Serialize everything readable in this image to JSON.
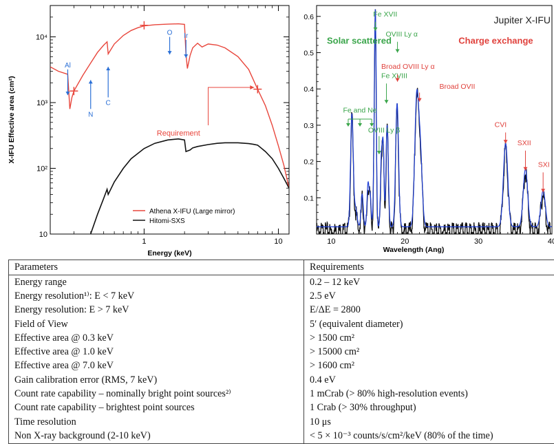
{
  "left_chart": {
    "type": "line",
    "ylabel": "X-IFU Effective area (cm²)",
    "xlabel": "Energy (keV)",
    "x_scale": "log",
    "y_scale": "log",
    "xlim": [
      0.2,
      12
    ],
    "ylim": [
      10,
      30000
    ],
    "x_ticks": [
      {
        "v": 1,
        "label": "1"
      },
      {
        "v": 10,
        "label": "10"
      }
    ],
    "y_ticks": [
      {
        "v": 10,
        "label": "10"
      },
      {
        "v": 100,
        "label": "10²"
      },
      {
        "v": 1000,
        "label": "10³"
      },
      {
        "v": 10000,
        "label": "10⁴"
      }
    ],
    "colors": {
      "athena": "#e8463c",
      "hitomi": "#111111",
      "arrow": "#2a6fd6",
      "req": "#e8463c"
    },
    "series": [
      {
        "name": "Athena X-IFU (Large mirror)",
        "color": "#e8463c",
        "x": [
          0.2,
          0.23,
          0.27,
          0.28,
          0.29,
          0.3,
          0.35,
          0.4,
          0.45,
          0.5,
          0.53,
          0.54,
          0.6,
          0.7,
          0.8,
          0.9,
          1.0,
          1.2,
          1.5,
          1.8,
          2.0,
          2.05,
          2.1,
          2.2,
          2.3,
          2.5,
          2.7,
          3.0,
          3.5,
          4,
          5,
          6,
          7,
          8,
          9,
          10,
          11,
          12
        ],
        "y": [
          3500,
          3000,
          2700,
          800,
          1200,
          1500,
          2600,
          4000,
          5800,
          7500,
          8400,
          5500,
          7800,
          10500,
          12500,
          13800,
          14700,
          15300,
          15600,
          15800,
          15500,
          5500,
          3300,
          5200,
          6800,
          8000,
          7000,
          7800,
          7500,
          6800,
          5000,
          3200,
          1600,
          900,
          450,
          220,
          110,
          50
        ]
      },
      {
        "name": "Hitomi-SXS",
        "color": "#111111",
        "x": [
          0.4,
          0.45,
          0.5,
          0.53,
          0.54,
          0.6,
          0.7,
          0.8,
          1.0,
          1.2,
          1.5,
          1.8,
          2.0,
          2.05,
          2.2,
          2.3,
          2.5,
          3,
          3.5,
          4,
          5,
          6,
          6.5,
          7,
          7.2,
          8,
          9,
          10,
          11,
          12
        ],
        "y": [
          10,
          20,
          35,
          48,
          40,
          62,
          100,
          140,
          200,
          240,
          270,
          280,
          270,
          180,
          190,
          205,
          215,
          230,
          240,
          245,
          245,
          238,
          232,
          225,
          215,
          180,
          140,
          100,
          70,
          50
        ]
      }
    ],
    "requirements": {
      "x": [
        0.3,
        1.0,
        7.0
      ],
      "y": [
        1500,
        15000,
        1600
      ]
    },
    "edges": [
      {
        "label": "Al",
        "x": 0.27,
        "y_from": 3200,
        "y_to": 1300
      },
      {
        "label": "N",
        "x": 0.4,
        "y_from": 800,
        "y_to": 2200
      },
      {
        "label": "C",
        "x": 0.54,
        "y_from": 1200,
        "y_to": 3500
      },
      {
        "label": "O",
        "x": 1.55,
        "y_from": 10000,
        "y_to": 5400
      },
      {
        "label": "Ir",
        "x": 2.05,
        "y_from": 9000,
        "y_to": 4800
      }
    ],
    "annotation": "Requirement",
    "legend": [
      "Athena X-IFU (Large mirror)",
      "Hitomi-SXS"
    ]
  },
  "right_chart": {
    "type": "line",
    "title": "Jupiter X-IFU",
    "xlabel": "Wavelength (Ang)",
    "xlim": [
      8,
      40
    ],
    "ylim": [
      0,
      0.63
    ],
    "x_ticks": [
      {
        "v": 10,
        "label": "10"
      },
      {
        "v": 20,
        "label": "20"
      },
      {
        "v": 30,
        "label": "30"
      },
      {
        "v": 40,
        "label": "40"
      }
    ],
    "y_ticks": [
      {
        "v": 0.1,
        "label": "0.1"
      },
      {
        "v": 0.2,
        "label": "0.2"
      },
      {
        "v": 0.3,
        "label": "0.3"
      },
      {
        "v": 0.4,
        "label": "0.4"
      },
      {
        "v": 0.5,
        "label": "0.5"
      },
      {
        "v": 0.6,
        "label": "0.6"
      }
    ],
    "peaks": [
      {
        "x": 12.8,
        "h": 0.31,
        "w": 0.18
      },
      {
        "x": 13.3,
        "h": 0.05,
        "w": 0.2
      },
      {
        "x": 14.2,
        "h": 0.09,
        "w": 0.15
      },
      {
        "x": 15.0,
        "h": 0.12,
        "w": 0.14
      },
      {
        "x": 15.3,
        "h": 0.08,
        "w": 0.12
      },
      {
        "x": 15.8,
        "h": 0.11,
        "w": 0.12
      },
      {
        "x": 16.0,
        "h": 0.57,
        "w": 0.12
      },
      {
        "x": 16.8,
        "h": 0.18,
        "w": 0.12
      },
      {
        "x": 17.05,
        "h": 0.22,
        "w": 0.12
      },
      {
        "x": 17.6,
        "h": 0.28,
        "w": 0.16
      },
      {
        "x": 18.95,
        "h": 0.34,
        "w": 0.2
      },
      {
        "x": 21.6,
        "h": 0.34,
        "w": 0.26
      },
      {
        "x": 22.1,
        "h": 0.2,
        "w": 0.26
      },
      {
        "x": 33.7,
        "h": 0.23,
        "w": 0.3
      },
      {
        "x": 36.4,
        "h": 0.16,
        "w": 0.3
      },
      {
        "x": 38.8,
        "h": 0.1,
        "w": 0.3
      }
    ],
    "baseline": 0.02,
    "colors": {
      "green": "#3aa54a",
      "red": "#e0413c",
      "data": "#111111",
      "model": "#1f3fd6",
      "title": "#222222"
    },
    "labels_green": [
      {
        "text": "Solar scattered",
        "lx": 9.4,
        "ly": 0.525,
        "big": true
      },
      {
        "text": "Fe XVII",
        "lx": 15.7,
        "ly": 0.6,
        "ax": 16.0,
        "ay_from": 0.585,
        "ay_to": 0.56
      },
      {
        "text": "OVIII Ly α",
        "lx": 17.4,
        "ly": 0.545,
        "ax": 19.0,
        "ay_from": 0.53,
        "ay_to": 0.5
      },
      {
        "text": "Fe XVIII",
        "lx": 16.8,
        "ly": 0.43,
        "ax": 17.5,
        "ay_from": 0.415,
        "ay_to": 0.36
      },
      {
        "text": "Fe and Ne",
        "lx": 11.6,
        "ly": 0.335,
        "ax": null
      },
      {
        "text": "OVIII Ly β",
        "lx": 15.0,
        "ly": 0.28,
        "ax": null
      }
    ],
    "labels_red": [
      {
        "text": "Charge exchange",
        "lx": 27.3,
        "ly": 0.525,
        "big": true
      },
      {
        "text": "Broad OVIII Ly α",
        "lx": 16.8,
        "ly": 0.455,
        "ax": 19.0,
        "ay_from": 0.44,
        "ay_to": 0.42
      },
      {
        "text": "Broad OVII",
        "lx": 24.7,
        "ly": 0.4,
        "ax": 22.0,
        "ay_from": 0.39,
        "ay_to": 0.365
      },
      {
        "text": "CVI",
        "lx": 32.2,
        "ly": 0.295,
        "ax": 33.7,
        "ay_from": 0.28,
        "ay_to": 0.25
      },
      {
        "text": "SXII",
        "lx": 35.3,
        "ly": 0.245,
        "ax": 36.4,
        "ay_from": 0.23,
        "ay_to": 0.175
      },
      {
        "text": "SXI",
        "lx": 38.1,
        "ly": 0.185,
        "ax": 38.8,
        "ay_from": 0.17,
        "ay_to": 0.115
      }
    ]
  },
  "table": {
    "header": [
      "Parameters",
      "Requirements"
    ],
    "rows": [
      [
        "Energy range",
        "0.2 – 12 keV"
      ],
      [
        "Energy resolution¹⁾: E < 7 keV",
        "2.5 eV"
      ],
      [
        "Energy resolution: E > 7 keV",
        "E/ΔE = 2800"
      ],
      [
        "Field of View",
        "5′ (equivalent diameter)"
      ],
      [
        "Effective area @ 0.3 keV",
        "> 1500 cm²"
      ],
      [
        "Effective area @ 1.0 keV",
        "> 15000 cm²"
      ],
      [
        "Effective area @ 7.0 keV",
        "> 1600 cm²"
      ],
      [
        "Gain calibration error (RMS, 7 keV)",
        "0.4 eV"
      ],
      [
        "Count rate capability – nominally bright point sources²⁾",
        "1 mCrab (> 80% high-resolution events)"
      ],
      [
        "Count rate capability – brightest point sources",
        "1 Crab (> 30% throughput)"
      ],
      [
        "Time resolution",
        "10 μs"
      ],
      [
        "Non X-ray background (2-10 keV)",
        "< 5 × 10⁻³ counts/s/cm²/keV (80% of the time)"
      ]
    ]
  }
}
